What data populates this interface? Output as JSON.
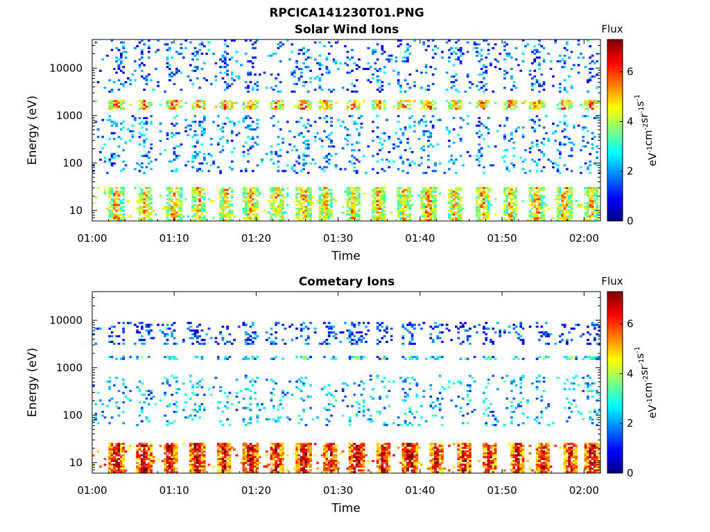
{
  "figure_title": "RPCICA141230T01.PNG",
  "colors": {
    "colormap": [
      "#00007f",
      "#0000ff",
      "#007fff",
      "#00ffff",
      "#7fff7f",
      "#ffff00",
      "#ff7f00",
      "#ff0000",
      "#7f0000"
    ],
    "axes": "#000000",
    "background": "#ffffff"
  },
  "chart_data": [
    {
      "type": "heatmap",
      "title": "Solar Wind Ions",
      "xlabel": "Time",
      "ylabel": "Energy (eV)",
      "x_ticks": [
        "01:00",
        "01:10",
        "01:20",
        "01:30",
        "01:40",
        "01:50",
        "02:00"
      ],
      "x_range_minutes": [
        0,
        62
      ],
      "y_scale": "log",
      "y_ticks": [
        "10",
        "100",
        "1000",
        "10000"
      ],
      "y_range": [
        6,
        40000
      ],
      "colorbar": {
        "title": "Flux",
        "label": "eV-1 cm-2 sr-1 s-1",
        "ticks": [
          "0",
          "2",
          "4",
          "6"
        ],
        "range": [
          0,
          7.3
        ]
      },
      "grid": false,
      "bands": [
        {
          "energy": [
            1400,
            2100
          ],
          "level": 4.2,
          "density": 0.7
        },
        {
          "energy": [
            6,
            30
          ],
          "level": 3.8,
          "density": 0.75
        },
        {
          "energy": [
            3000,
            40000
          ],
          "level": 1.6,
          "density": 0.1
        },
        {
          "energy": [
            60,
            1000
          ],
          "level": 1.9,
          "density": 0.1
        }
      ],
      "bursts_minutes": [
        3,
        6.5,
        10,
        13,
        16.3,
        19.3,
        22.6,
        25.8,
        28.5,
        31.8,
        35,
        38,
        41,
        44.3,
        47.6,
        51,
        54.3,
        57.6,
        60.8
      ]
    },
    {
      "type": "heatmap",
      "title": "Cometary Ions",
      "xlabel": "Time",
      "ylabel": "Energy (eV)",
      "x_ticks": [
        "01:00",
        "01:10",
        "01:20",
        "01:30",
        "01:40",
        "01:50",
        "02:00"
      ],
      "x_range_minutes": [
        0,
        62
      ],
      "y_scale": "log",
      "y_ticks": [
        "10",
        "100",
        "1000",
        "10000"
      ],
      "y_range": [
        6,
        40000
      ],
      "colorbar": {
        "title": "Flux",
        "label": "eV-1 cm-2 sr-1 s-1",
        "ticks": [
          "0",
          "2",
          "4",
          "6"
        ],
        "range": [
          0,
          7.3
        ]
      },
      "grid": false,
      "bands": [
        {
          "energy": [
            6,
            25
          ],
          "level": 5.4,
          "density": 0.85
        },
        {
          "energy": [
            1450,
            1800
          ],
          "level": 2.1,
          "density": 0.5
        },
        {
          "energy": [
            3000,
            9000
          ],
          "level": 1.3,
          "density": 0.15
        },
        {
          "energy": [
            60,
            700
          ],
          "level": 2.3,
          "density": 0.08
        }
      ],
      "bursts_minutes": [
        3,
        6.3,
        9.5,
        12.8,
        16,
        19.3,
        22.5,
        25.8,
        29,
        32.3,
        35.5,
        38.8,
        42,
        45.3,
        48.5,
        51.8,
        55,
        58.3,
        61
      ]
    }
  ]
}
